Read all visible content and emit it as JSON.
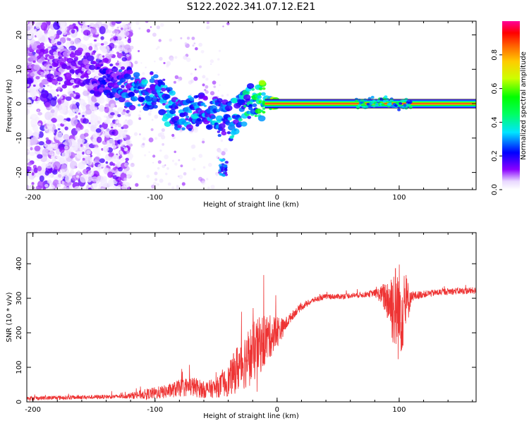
{
  "title": "S122.2022.341.07.12.E21",
  "chart_data": [
    {
      "type": "heatmap",
      "panel": "spectrogram",
      "xlabel": "Height of straight line (km)",
      "ylabel": "Frequency (Hz)",
      "xlim": [
        -205,
        163
      ],
      "ylim": [
        -25,
        24
      ],
      "xticks": [
        -200,
        -100,
        0,
        100
      ],
      "yticks": [
        -20,
        -10,
        0,
        10,
        20
      ],
      "colorbar": {
        "label": "Normalized spectral amplitude",
        "range": [
          0,
          1
        ],
        "ticks": [
          0.0,
          0.2,
          0.4,
          0.6,
          0.8
        ],
        "colormap": [
          "#ffffff",
          "#8a00ff",
          "#0000ff",
          "#00e5ff",
          "#00ff00",
          "#ffff00",
          "#ff8000",
          "#ff0000",
          "#ff0099"
        ]
      },
      "description_of_data": {
        "noise_region_km": [
          -205,
          -135
        ],
        "transition_region_km": [
          -135,
          -10
        ],
        "stable_tone_region_km": [
          -10,
          163
        ],
        "stable_tone_frequency_hz": 0,
        "stable_tone_amplitude": 0.9
      },
      "signal_trace": {
        "x": [
          -205,
          -185,
          -165,
          -145,
          -125,
          -110,
          -100,
          -90,
          -80,
          -70,
          -60,
          -50,
          -40,
          -32,
          -25,
          -18,
          -12,
          -5,
          0,
          20,
          50,
          70,
          80,
          88,
          95,
          100,
          105,
          110,
          163
        ],
        "freq_hz": [
          13,
          11,
          10,
          8,
          5,
          3,
          4,
          0,
          -3,
          -2,
          -2,
          -3,
          -5,
          -3,
          0,
          1,
          0.5,
          0,
          0,
          0,
          0,
          0,
          0.5,
          1,
          0.3,
          -1,
          0,
          0,
          0
        ],
        "amplitude": [
          0.1,
          0.15,
          0.15,
          0.2,
          0.3,
          0.35,
          0.35,
          0.35,
          0.35,
          0.35,
          0.35,
          0.35,
          0.35,
          0.4,
          0.45,
          0.5,
          0.6,
          0.8,
          0.9,
          0.9,
          0.9,
          0.85,
          0.5,
          0.45,
          0.45,
          0.5,
          0.7,
          0.9,
          0.9
        ]
      }
    },
    {
      "type": "line",
      "panel": "snr",
      "xlabel": "Height of straight line (km)",
      "ylabel": "SNR (10 * v/v)",
      "xlim": [
        -205,
        163
      ],
      "ylim": [
        0,
        490
      ],
      "xticks": [
        -200,
        -100,
        0,
        100
      ],
      "yticks": [
        0,
        100,
        200,
        300,
        400
      ],
      "color": "#ee3333",
      "series": [
        {
          "name": "SNR",
          "x": [
            -205,
            -180,
            -150,
            -125,
            -115,
            -100,
            -90,
            -80,
            -70,
            -60,
            -50,
            -40,
            -30,
            -20,
            -10,
            -5,
            0,
            5,
            10,
            15,
            20,
            30,
            40,
            50,
            60,
            70,
            80,
            85,
            90,
            95,
            100,
            105,
            110,
            120,
            140,
            163
          ],
          "mean": [
            10,
            12,
            14,
            16,
            20,
            25,
            30,
            40,
            45,
            35,
            40,
            60,
            110,
            140,
            180,
            190,
            205,
            215,
            240,
            260,
            275,
            295,
            305,
            305,
            308,
            310,
            315,
            310,
            300,
            280,
            260,
            280,
            305,
            312,
            320,
            322
          ],
          "noise": [
            6,
            6,
            6,
            6,
            12,
            18,
            20,
            25,
            30,
            25,
            28,
            45,
            80,
            90,
            80,
            60,
            50,
            25,
            15,
            12,
            10,
            8,
            8,
            8,
            8,
            8,
            10,
            25,
            60,
            120,
            150,
            100,
            15,
            10,
            10,
            10
          ]
        }
      ]
    }
  ]
}
